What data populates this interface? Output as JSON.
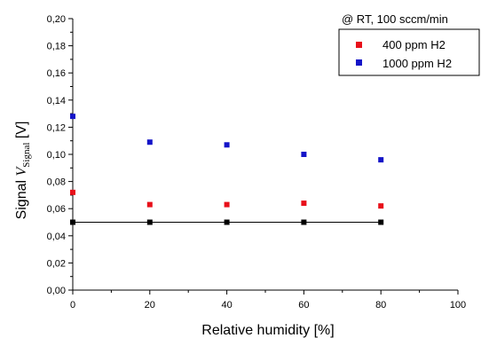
{
  "chart_data": {
    "type": "scatter",
    "title": "",
    "annotation": "@ RT, 100 sccm/min",
    "xlabel": "Relative humidity [%]",
    "ylabel": {
      "prefix": "Signal ",
      "symbol": "V",
      "subscript": "Signal",
      "suffix": " [V]"
    },
    "xlim": [
      0,
      100
    ],
    "ylim": [
      0,
      0.2
    ],
    "xticks": [
      "0",
      "20",
      "40",
      "60",
      "80",
      "100"
    ],
    "xtick_values": [
      0,
      20,
      40,
      60,
      80,
      100
    ],
    "yticks": [
      "0,00",
      "0,02",
      "0,04",
      "0,06",
      "0,08",
      "0,10",
      "0,12",
      "0,14",
      "0,16",
      "0,18",
      "0,20"
    ],
    "ytick_values": [
      0,
      0.02,
      0.04,
      0.06,
      0.08,
      0.1,
      0.12,
      0.14,
      0.16,
      0.18,
      0.2
    ],
    "grid": false,
    "legend_position": "top-right",
    "series": [
      {
        "name": "400 ppm H2",
        "color": "#e8101a",
        "x": [
          0,
          20,
          40,
          60,
          80
        ],
        "y": [
          0.072,
          0.063,
          0.063,
          0.064,
          0.062
        ]
      },
      {
        "name": "1000 ppm H2",
        "color": "#1414c8",
        "x": [
          0,
          20,
          40,
          60,
          80
        ],
        "y": [
          0.128,
          0.109,
          0.107,
          0.1,
          0.096
        ]
      },
      {
        "name": "",
        "color": "#000000",
        "style": "line-with-markers",
        "x": [
          0,
          20,
          40,
          60,
          80
        ],
        "y": [
          0.05,
          0.05,
          0.05,
          0.05,
          0.05
        ]
      }
    ]
  }
}
